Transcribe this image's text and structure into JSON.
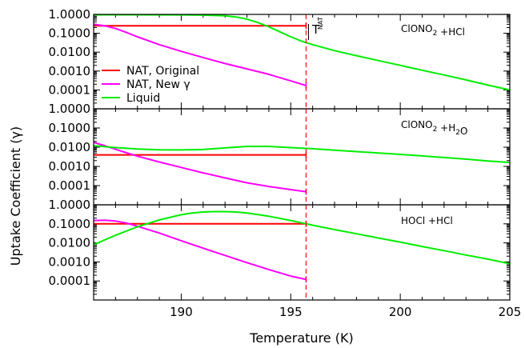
{
  "figure": {
    "ylabel_prefix": "Uptake Coefficient (",
    "ylabel_symbol": "γ",
    "ylabel_suffix": ")",
    "xlabel": "Temperature (K)",
    "tnat_main": "T",
    "tnat_sub": "NAT"
  },
  "legend": {
    "entries": [
      {
        "main": "NAT, Original",
        "sym": "",
        "color": "#ff0000"
      },
      {
        "main": "NAT, New ",
        "sym": "γ",
        "color": "#ff00ff"
      },
      {
        "main": "Liquid",
        "sym": "",
        "color": "#00ee00"
      }
    ]
  },
  "colors": {
    "nat_original": "#ff0000",
    "nat_new": "#ff00ff",
    "liquid": "#00ee00",
    "tnat_line": "#ff0000"
  },
  "chart_data": [
    {
      "type": "line",
      "title": "",
      "annotation": {
        "pre": "ClONO",
        "sub": "2",
        "post": " +HCl"
      },
      "xlabel": "Temperature (K)",
      "ylabel": "Uptake Coefficient (γ)",
      "xscale": "linear",
      "yscale": "log",
      "xlim": [
        186,
        205
      ],
      "ylim": [
        1e-05,
        1.0
      ],
      "xticks": [
        190,
        195,
        200,
        205
      ],
      "yticks": [
        {
          "value": 1.0,
          "label": "1.0000"
        },
        {
          "value": 0.1,
          "label": "0.1000"
        },
        {
          "value": 0.01,
          "label": "0.0100"
        },
        {
          "value": 0.001,
          "label": "0.0010"
        },
        {
          "value": 0.0001,
          "label": "0.0001"
        }
      ],
      "tnat": 195.7,
      "series": [
        {
          "name": "NAT, Original",
          "color": "#ff0000",
          "x": [
            186,
            195.7
          ],
          "y": [
            0.25,
            0.25
          ]
        },
        {
          "name": "NAT, New γ",
          "color": "#ff00ff",
          "x": [
            186,
            186.5,
            187,
            187.5,
            188,
            189,
            190,
            191,
            192,
            193,
            194,
            195,
            195.7
          ],
          "y": [
            0.3,
            0.25,
            0.18,
            0.11,
            0.065,
            0.025,
            0.011,
            0.0052,
            0.0025,
            0.0013,
            0.00067,
            0.0003,
            0.00017
          ]
        },
        {
          "name": "Liquid",
          "color": "#00ee00",
          "x": [
            186,
            188,
            190,
            191,
            192,
            192.5,
            193,
            193.5,
            194,
            194.5,
            195,
            195.5,
            196,
            197,
            198,
            199,
            200,
            201,
            202,
            203,
            204,
            205
          ],
          "y": [
            0.95,
            0.95,
            0.94,
            0.92,
            0.85,
            0.73,
            0.56,
            0.37,
            0.22,
            0.12,
            0.065,
            0.038,
            0.025,
            0.012,
            0.0065,
            0.0036,
            0.002,
            0.0011,
            0.00062,
            0.00034,
            0.00018,
            0.0001
          ]
        }
      ]
    },
    {
      "type": "line",
      "title": "",
      "annotation": {
        "pre": "ClONO",
        "sub": "2",
        "post": " +H",
        "sub2": "2",
        "post2": "O"
      },
      "xlabel": "Temperature (K)",
      "ylabel": "Uptake Coefficient (γ)",
      "xscale": "linear",
      "yscale": "log",
      "xlim": [
        186,
        205
      ],
      "ylim": [
        1e-05,
        1.0
      ],
      "xticks": [
        190,
        195,
        200,
        205
      ],
      "yticks": [
        {
          "value": 1.0,
          "label": "1.0000"
        },
        {
          "value": 0.1,
          "label": "0.1000"
        },
        {
          "value": 0.01,
          "label": "0.0100"
        },
        {
          "value": 0.001,
          "label": "0.0010"
        },
        {
          "value": 0.0001,
          "label": "0.0001"
        }
      ],
      "tnat": 195.7,
      "series": [
        {
          "name": "NAT, Original",
          "color": "#ff0000",
          "x": [
            186,
            195.7
          ],
          "y": [
            0.004,
            0.004
          ]
        },
        {
          "name": "NAT, New γ",
          "color": "#ff00ff",
          "x": [
            186,
            186.5,
            187,
            187.5,
            188,
            189,
            190,
            191,
            192,
            193,
            194,
            195,
            195.7
          ],
          "y": [
            0.018,
            0.012,
            0.0078,
            0.0051,
            0.0034,
            0.0017,
            0.00088,
            0.00046,
            0.00025,
            0.00014,
            9e-05,
            6.2e-05,
            4.8e-05
          ]
        },
        {
          "name": "Liquid",
          "color": "#00ee00",
          "x": [
            186,
            187,
            188,
            189,
            190,
            191,
            192,
            193,
            194,
            195,
            196,
            197,
            198,
            199,
            200,
            201,
            202,
            203,
            204,
            205
          ],
          "y": [
            0.012,
            0.0095,
            0.008,
            0.0073,
            0.0072,
            0.0076,
            0.0092,
            0.011,
            0.011,
            0.0095,
            0.0083,
            0.007,
            0.0059,
            0.005,
            0.0042,
            0.0035,
            0.0029,
            0.0024,
            0.0019,
            0.0016
          ]
        }
      ]
    },
    {
      "type": "line",
      "title": "",
      "annotation": {
        "pre": "HOCl +HCl"
      },
      "xlabel": "Temperature (K)",
      "ylabel": "Uptake Coefficient (γ)",
      "xscale": "linear",
      "yscale": "log",
      "xlim": [
        186,
        205
      ],
      "ylim": [
        1e-05,
        1.0
      ],
      "xticks": [
        190,
        195,
        200,
        205
      ],
      "yticks": [
        {
          "value": 1.0,
          "label": "1.0000"
        },
        {
          "value": 0.1,
          "label": "0.1000"
        },
        {
          "value": 0.01,
          "label": "0.0100"
        },
        {
          "value": 0.001,
          "label": "0.0010"
        },
        {
          "value": 0.0001,
          "label": "0.0001"
        }
      ],
      "tnat": 195.7,
      "series": [
        {
          "name": "NAT, Original",
          "color": "#ff0000",
          "x": [
            186,
            195.7
          ],
          "y": [
            0.1,
            0.1
          ]
        },
        {
          "name": "NAT, New γ",
          "color": "#ff00ff",
          "x": [
            186,
            186.5,
            187,
            187.5,
            188,
            189,
            190,
            191,
            192,
            193,
            194,
            195,
            195.7
          ],
          "y": [
            0.15,
            0.155,
            0.14,
            0.11,
            0.075,
            0.033,
            0.013,
            0.0053,
            0.0022,
            0.00092,
            0.0004,
            0.00018,
            0.00012
          ]
        },
        {
          "name": "Liquid",
          "color": "#00ee00",
          "x": [
            186,
            187,
            188,
            189,
            190,
            190.5,
            191,
            191.5,
            192,
            192.5,
            193,
            194,
            195,
            196,
            197,
            198,
            199,
            200,
            201,
            202,
            203,
            204,
            205
          ],
          "y": [
            0.008,
            0.025,
            0.07,
            0.16,
            0.3,
            0.37,
            0.42,
            0.44,
            0.44,
            0.42,
            0.37,
            0.25,
            0.15,
            0.085,
            0.05,
            0.03,
            0.018,
            0.011,
            0.0065,
            0.0039,
            0.0023,
            0.0014,
            0.0008
          ]
        }
      ]
    }
  ]
}
